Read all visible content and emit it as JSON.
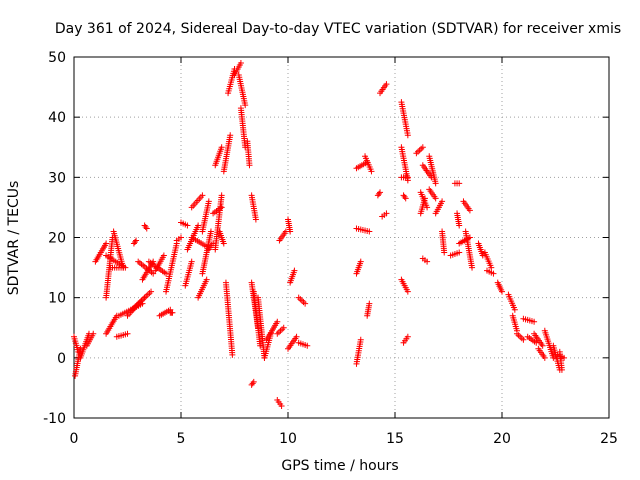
{
  "chart_data": {
    "type": "scatter",
    "title": "Day 361 of 2024, Sidereal Day-to-day VTEC variation (SDTVAR) for receiver xmis",
    "xlabel": "GPS time / hours",
    "ylabel": "SDTVAR / TECUs",
    "xlim": [
      0,
      25
    ],
    "ylim": [
      -10,
      50
    ],
    "xticks": [
      0,
      5,
      10,
      15,
      20,
      25
    ],
    "yticks": [
      -10,
      0,
      10,
      20,
      30,
      40,
      50
    ],
    "xtick_labels": [
      "0",
      "5",
      "10",
      "15",
      "20",
      "25"
    ],
    "ytick_labels": [
      "-10",
      "0",
      "10",
      "20",
      "30",
      "40",
      "50"
    ],
    "grid": true,
    "marker": "+",
    "color": "#ff0000",
    "series": [
      {
        "name": "arcs",
        "segments": [
          [
            0.0,
            3.5,
            0.2,
            1.0
          ],
          [
            0.05,
            -3.0,
            0.3,
            1.5
          ],
          [
            0.3,
            0.0,
            0.7,
            4.0
          ],
          [
            0.6,
            2.0,
            0.9,
            4.0
          ],
          [
            1.5,
            19.0,
            1.0,
            16.0
          ],
          [
            1.5,
            17.0,
            2.4,
            15.0
          ],
          [
            1.5,
            10.0,
            1.8,
            20.0
          ],
          [
            1.7,
            15.0,
            2.3,
            15.0
          ],
          [
            1.85,
            21.0,
            2.3,
            15.0
          ],
          [
            1.5,
            4.0,
            2.0,
            7.0
          ],
          [
            2.1,
            7.0,
            3.2,
            9.0
          ],
          [
            2.0,
            3.5,
            2.5,
            4.0
          ],
          [
            2.5,
            7.0,
            3.3,
            10.0
          ],
          [
            2.7,
            8.0,
            3.6,
            11.0
          ],
          [
            2.8,
            19.0,
            2.9,
            19.5
          ],
          [
            3.3,
            22.0,
            3.4,
            21.5
          ],
          [
            3.0,
            16.0,
            3.7,
            14.0
          ],
          [
            3.2,
            13.0,
            3.7,
            16.0
          ],
          [
            3.5,
            16.0,
            4.3,
            14.0
          ],
          [
            3.8,
            14.5,
            4.2,
            17.0
          ],
          [
            4.0,
            7.0,
            4.5,
            8.0
          ],
          [
            4.5,
            7.5,
            4.6,
            7.5
          ],
          [
            4.3,
            11.0,
            4.8,
            19.0
          ],
          [
            4.8,
            19.5,
            5.0,
            20.0
          ],
          [
            5.0,
            22.5,
            5.3,
            22.0
          ],
          [
            5.3,
            18.0,
            5.8,
            22.0
          ],
          [
            5.2,
            12.0,
            5.5,
            16.0
          ],
          [
            5.5,
            25.0,
            6.0,
            27.0
          ],
          [
            6.0,
            21.0,
            6.3,
            26.0
          ],
          [
            6.3,
            18.0,
            6.5,
            19.0
          ],
          [
            5.5,
            20.0,
            6.2,
            18.5
          ],
          [
            5.8,
            10.0,
            6.2,
            13.0
          ],
          [
            6.0,
            14.0,
            6.4,
            21.0
          ],
          [
            6.5,
            24.0,
            6.9,
            25.0
          ],
          [
            6.6,
            18.0,
            6.9,
            27.0
          ],
          [
            6.8,
            21.0,
            7.0,
            19.0
          ],
          [
            7.1,
            12.5,
            7.4,
            0.5
          ],
          [
            6.6,
            32.0,
            6.9,
            35.0
          ],
          [
            7.0,
            31.0,
            7.3,
            37.0
          ],
          [
            7.2,
            44.0,
            7.5,
            48.0
          ],
          [
            7.5,
            47.0,
            7.8,
            49.0
          ],
          [
            7.8,
            41.5,
            8.0,
            35.0
          ],
          [
            8.1,
            36.0,
            8.2,
            32.0
          ],
          [
            7.7,
            47.0,
            8.0,
            42.0
          ],
          [
            8.3,
            27.0,
            8.5,
            23.0
          ],
          [
            8.3,
            12.5,
            8.6,
            5.0
          ],
          [
            8.4,
            11.0,
            8.7,
            2.0
          ],
          [
            8.6,
            10.0,
            8.9,
            0.0
          ],
          [
            8.9,
            0.0,
            9.2,
            4.0
          ],
          [
            8.3,
            -4.5,
            8.4,
            -4.0
          ],
          [
            9.0,
            3.0,
            9.5,
            6.0
          ],
          [
            9.5,
            4.0,
            9.8,
            5.0
          ],
          [
            9.6,
            19.5,
            9.9,
            21.0
          ],
          [
            9.5,
            -7.0,
            9.7,
            -8.0
          ],
          [
            10.0,
            23.0,
            10.1,
            21.0
          ],
          [
            10.1,
            12.5,
            10.3,
            14.5
          ],
          [
            10.0,
            1.5,
            10.4,
            3.5
          ],
          [
            10.5,
            2.5,
            10.9,
            2.0
          ],
          [
            10.5,
            10.0,
            10.8,
            9.0
          ],
          [
            13.2,
            -1.0,
            13.4,
            3.0
          ],
          [
            13.2,
            14.0,
            13.4,
            16.0
          ],
          [
            13.2,
            31.5,
            13.7,
            32.5
          ],
          [
            13.6,
            33.5,
            13.9,
            31.0
          ],
          [
            13.2,
            21.5,
            13.8,
            21.0
          ],
          [
            13.7,
            7.0,
            13.8,
            9.0
          ],
          [
            14.2,
            27.0,
            14.3,
            27.5
          ],
          [
            14.3,
            44.0,
            14.6,
            45.5
          ],
          [
            14.4,
            23.5,
            14.6,
            24.0
          ],
          [
            15.3,
            42.5,
            15.6,
            37.0
          ],
          [
            15.3,
            35.0,
            15.6,
            29.5
          ],
          [
            15.3,
            30.0,
            15.6,
            30.0
          ],
          [
            15.4,
            27.0,
            15.5,
            26.5
          ],
          [
            15.3,
            13.0,
            15.6,
            11.0
          ],
          [
            15.4,
            2.5,
            15.6,
            3.5
          ],
          [
            16.0,
            34.0,
            16.3,
            35.0
          ],
          [
            16.3,
            32.0,
            16.7,
            30.0
          ],
          [
            16.6,
            33.5,
            16.9,
            29.0
          ],
          [
            16.6,
            28.0,
            16.9,
            26.5
          ],
          [
            16.2,
            27.5,
            16.5,
            25.0
          ],
          [
            16.2,
            24.0,
            16.4,
            26.5
          ],
          [
            16.9,
            24.0,
            17.2,
            26.0
          ],
          [
            16.3,
            16.5,
            16.5,
            16.0
          ],
          [
            17.2,
            21.0,
            17.3,
            17.5
          ],
          [
            17.6,
            17.0,
            18.0,
            17.5
          ],
          [
            17.8,
            29.0,
            18.0,
            29.0
          ],
          [
            17.9,
            24.0,
            18.0,
            22.0
          ],
          [
            18.2,
            26.0,
            18.5,
            24.5
          ],
          [
            18.3,
            21.0,
            18.6,
            15.0
          ],
          [
            18.0,
            19.0,
            18.5,
            20.0
          ],
          [
            18.9,
            19.0,
            19.1,
            17.0
          ],
          [
            19.2,
            17.5,
            19.5,
            15.0
          ],
          [
            19.3,
            14.5,
            19.6,
            14.0
          ],
          [
            19.8,
            12.5,
            20.0,
            11.0
          ],
          [
            20.3,
            10.5,
            20.6,
            8.0
          ],
          [
            20.5,
            7.0,
            20.7,
            4.5
          ],
          [
            20.7,
            4.0,
            21.0,
            3.0
          ],
          [
            21.0,
            6.5,
            21.5,
            6.0
          ],
          [
            21.2,
            3.5,
            21.6,
            2.5
          ],
          [
            21.5,
            4.0,
            21.9,
            2.0
          ],
          [
            21.7,
            1.5,
            22.0,
            0.0
          ],
          [
            22.0,
            4.5,
            22.4,
            0.0
          ],
          [
            22.4,
            2.0,
            22.7,
            -2.0
          ],
          [
            22.6,
            0.5,
            22.9,
            0.0
          ],
          [
            22.7,
            1.0,
            22.8,
            -2.0
          ]
        ]
      }
    ]
  }
}
